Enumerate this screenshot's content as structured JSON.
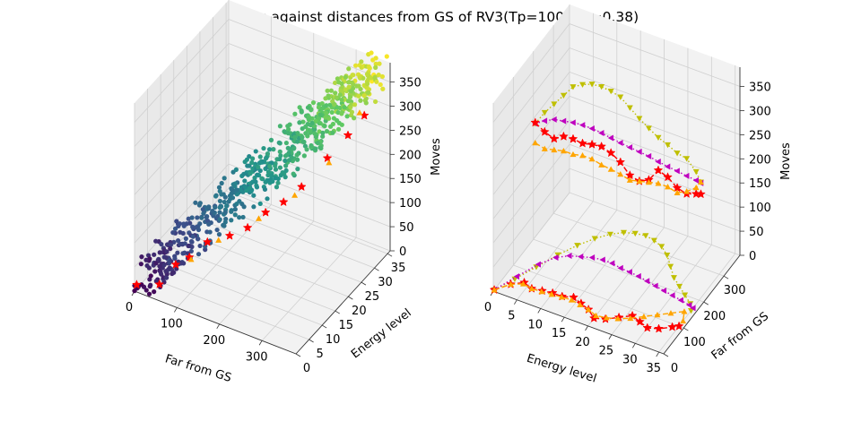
{
  "figure": {
    "title": "Moves against distances from GS of RV3(Tp=100, Sp=0.38)"
  },
  "chart_data": [
    {
      "type": "scatter",
      "projection": "3d",
      "xlabel": "Far from GS",
      "ylabel": "Energy level",
      "zlabel": "Moves",
      "xlim": [
        0,
        380
      ],
      "ylim": [
        0,
        36
      ],
      "zlim": [
        0,
        390
      ],
      "xticks": [
        "0",
        "100",
        "200",
        "300"
      ],
      "yticks": [
        "0",
        "5",
        "10",
        "15",
        "20",
        "25",
        "30",
        "35"
      ],
      "zticks": [
        "0",
        "50",
        "100",
        "150",
        "200",
        "250",
        "300",
        "350"
      ],
      "grid": true,
      "colormap": "viridis",
      "description_series": [
        {
          "marker": "circle",
          "note": "dense cloud of states colored by energy level (viridis)",
          "approx_trend": {
            "x": [
              5,
              360
            ],
            "y": [
              2,
              34
            ],
            "z": [
              10,
              380
            ]
          }
        },
        {
          "marker": "star",
          "color": "#ff0000",
          "points": [
            [
              5,
              0,
              15
            ],
            [
              40,
              3,
              10
            ],
            [
              60,
              6,
              40
            ],
            [
              80,
              8,
              50
            ],
            [
              110,
              10,
              80
            ],
            [
              150,
              12,
              95
            ],
            [
              180,
              14,
              110
            ],
            [
              210,
              16,
              140
            ],
            [
              240,
              18,
              160
            ],
            [
              270,
              20,
              190
            ],
            [
              300,
              25,
              230
            ],
            [
              330,
              28,
              270
            ],
            [
              350,
              31,
              300
            ]
          ]
        },
        {
          "marker": "triangle",
          "color": "#ffa500",
          "points": [
            [
              90,
              7,
              55
            ],
            [
              130,
              11,
              85
            ],
            [
              200,
              15,
              130
            ],
            [
              260,
              19,
              175
            ],
            [
              310,
              24,
              230
            ],
            [
              345,
              30,
              310
            ]
          ]
        }
      ]
    },
    {
      "type": "line",
      "projection": "3d",
      "xlabel": "Energy level",
      "ylabel": "Far from GS",
      "zlabel": "Moves",
      "xlim": [
        0,
        36
      ],
      "ylim": [
        0,
        380
      ],
      "zlim": [
        0,
        390
      ],
      "xticks": [
        "0",
        "5",
        "10",
        "15",
        "20",
        "25",
        "30",
        "35"
      ],
      "yticks": [
        "0",
        "100",
        "200",
        "300"
      ],
      "zticks": [
        "0",
        "50",
        "100",
        "150",
        "200",
        "250",
        "300",
        "350"
      ],
      "grid": true,
      "series": [
        {
          "color": "#bfbf00",
          "style": "dotted",
          "marker": "tri_down",
          "kind": "moves",
          "x": [
            0,
            2,
            4,
            6,
            8,
            10,
            12,
            14,
            16,
            18,
            20,
            22,
            24,
            26,
            28,
            30,
            32,
            34,
            35
          ],
          "z": [
            235,
            265,
            290,
            315,
            340,
            352,
            360,
            362,
            360,
            355,
            340,
            325,
            312,
            300,
            292,
            282,
            278,
            258,
            240
          ]
        },
        {
          "color": "#bf00bf",
          "style": "dotted",
          "marker": "tri_left",
          "kind": "moves",
          "x": [
            0,
            2,
            4,
            6,
            8,
            10,
            12,
            14,
            16,
            18,
            20,
            22,
            24,
            26,
            28,
            30,
            32,
            34,
            35
          ],
          "z": [
            235,
            248,
            258,
            262,
            266,
            268,
            268,
            266,
            263,
            260,
            258,
            256,
            254,
            250,
            247,
            245,
            242,
            240,
            238
          ]
        },
        {
          "color": "#ff0000",
          "style": "dashed",
          "marker": "star",
          "kind": "moves",
          "x": [
            0,
            2,
            4,
            6,
            8,
            10,
            12,
            14,
            16,
            18,
            20,
            22,
            24,
            26,
            28,
            30,
            32,
            34,
            35
          ],
          "z": [
            237,
            225,
            218,
            230,
            232,
            230,
            235,
            238,
            232,
            220,
            200,
            195,
            205,
            232,
            225,
            210,
            205,
            212,
            215
          ]
        },
        {
          "color": "#ffa500",
          "style": "dashed",
          "marker": "tri_up",
          "kind": "moves",
          "x": [
            0,
            2,
            4,
            6,
            8,
            10,
            12,
            14,
            16,
            18,
            20,
            22,
            24,
            26,
            28,
            30,
            32,
            34,
            35
          ],
          "z": [
            195,
            190,
            195,
            200,
            200,
            205,
            205,
            200,
            198,
            195,
            190,
            195,
            200,
            205,
            205,
            200,
            210,
            225,
            240
          ]
        },
        {
          "color": "#bfbf00",
          "style": "dotted",
          "marker": "tri_down",
          "kind": "distance",
          "x": [
            0,
            2,
            4,
            6,
            8,
            10,
            12,
            14,
            16,
            18,
            20,
            22,
            24,
            26,
            28,
            30,
            32,
            34,
            35
          ],
          "y": [
            5,
            60,
            120,
            180,
            230,
            270,
            300,
            320,
            330,
            335,
            330,
            320,
            300,
            270,
            240,
            220,
            200,
            180,
            160
          ]
        },
        {
          "color": "#bf00bf",
          "style": "dotted",
          "marker": "tri_left",
          "kind": "distance",
          "x": [
            0,
            2,
            4,
            6,
            8,
            10,
            12,
            14,
            16,
            18,
            20,
            22,
            24,
            26,
            28,
            30,
            32,
            34,
            35
          ],
          "y": [
            5,
            70,
            130,
            170,
            190,
            200,
            210,
            215,
            215,
            210,
            208,
            205,
            200,
            195,
            190,
            185,
            180,
            175,
            170
          ]
        },
        {
          "color": "#ff0000",
          "style": "dashed",
          "marker": "star",
          "kind": "distance",
          "x": [
            0,
            2,
            4,
            6,
            8,
            10,
            12,
            14,
            16,
            18,
            20,
            22,
            24,
            26,
            28,
            30,
            32,
            34,
            35
          ],
          "y": [
            5,
            40,
            60,
            50,
            55,
            60,
            60,
            70,
            60,
            50,
            30,
            40,
            60,
            80,
            70,
            60,
            70,
            90,
            100
          ]
        },
        {
          "color": "#ffa500",
          "style": "dashed",
          "marker": "tri_up",
          "kind": "distance",
          "x": [
            0,
            2,
            4,
            6,
            8,
            10,
            12,
            14,
            16,
            18,
            20,
            22,
            24,
            26,
            28,
            30,
            32,
            34,
            35
          ],
          "y": [
            5,
            40,
            55,
            50,
            52,
            55,
            58,
            60,
            55,
            50,
            40,
            45,
            55,
            70,
            90,
            110,
            130,
            150,
            120
          ]
        }
      ]
    }
  ]
}
